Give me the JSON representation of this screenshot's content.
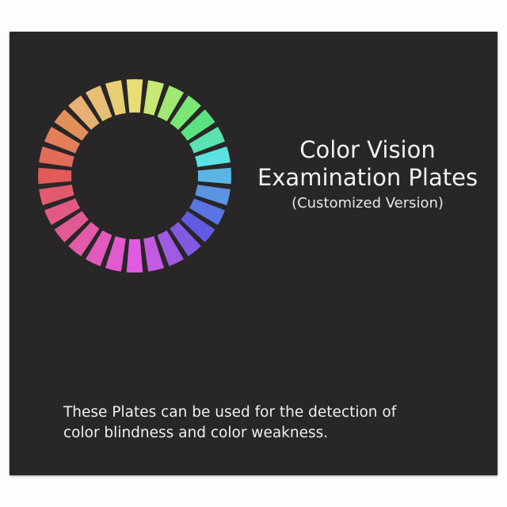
{
  "cover": {
    "title_line1": "Color Vision",
    "title_line2": "Examination Plates",
    "subtitle": "(Customized Version)",
    "description_line1": "These Plates can be used for the detection of",
    "description_line2": "color blindness and color weakness.",
    "background_color": "#282627",
    "color_wheel": {
      "segments": 28,
      "top_color": "yellow",
      "right_color": "light blue",
      "bottom_color": "magenta",
      "left_color": "red"
    }
  }
}
